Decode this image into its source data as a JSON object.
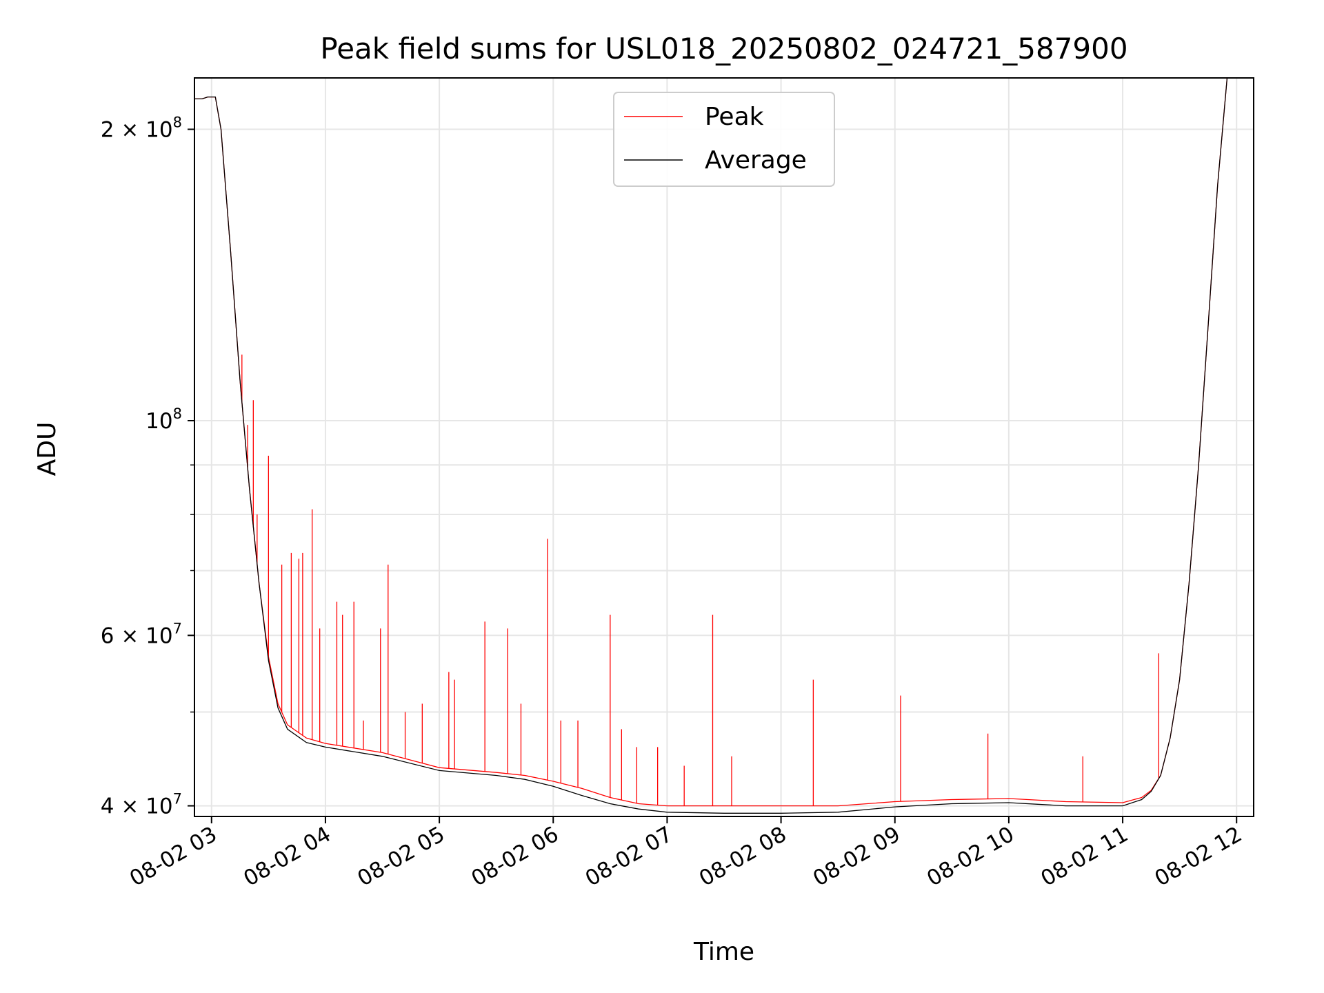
{
  "chart_data": {
    "type": "line",
    "title": "Peak field sums for USL018_20250802_024721_587900",
    "xlabel": "Time",
    "ylabel": "ADU",
    "x_scale": "time",
    "y_scale": "log",
    "xlim": [
      "2025-08-02 02:51",
      "2025-08-02 12:09"
    ],
    "ylim": [
      39000000,
      226000000
    ],
    "grid": true,
    "legend_position": "top-center",
    "x_ticks": [
      "08-02 03",
      "08-02 04",
      "08-02 05",
      "08-02 06",
      "08-02 07",
      "08-02 08",
      "08-02 09",
      "08-02 10",
      "08-02 11",
      "08-02 12"
    ],
    "x_tick_times": [
      "2025-08-02 03:00",
      "2025-08-02 04:00",
      "2025-08-02 05:00",
      "2025-08-02 06:00",
      "2025-08-02 07:00",
      "2025-08-02 08:00",
      "2025-08-02 09:00",
      "2025-08-02 10:00",
      "2025-08-02 11:00",
      "2025-08-02 12:00"
    ],
    "y_ticks": [
      {
        "value": 40000000,
        "label": "4 × 10",
        "exp": "7"
      },
      {
        "value": 60000000,
        "label": "6 × 10",
        "exp": "7"
      },
      {
        "value": 100000000,
        "label": "10",
        "exp": "8"
      },
      {
        "value": 200000000,
        "label": "2 × 10",
        "exp": "8"
      }
    ],
    "y_minor_ticks": [
      50000000,
      70000000,
      80000000,
      90000000,
      300000000
    ],
    "series": [
      {
        "name": "Peak",
        "color": "#ff0000",
        "x": [
          "2025-08-02 02:51",
          "2025-08-02 02:55",
          "2025-08-02 02:58",
          "2025-08-02 03:02",
          "2025-08-02 03:05",
          "2025-08-02 03:10",
          "2025-08-02 03:15",
          "2025-08-02 03:20",
          "2025-08-02 03:25",
          "2025-08-02 03:30",
          "2025-08-02 03:35",
          "2025-08-02 03:40",
          "2025-08-02 03:50",
          "2025-08-02 04:00",
          "2025-08-02 04:30",
          "2025-08-02 05:00",
          "2025-08-02 05:30",
          "2025-08-02 05:45",
          "2025-08-02 06:00",
          "2025-08-02 06:15",
          "2025-08-02 06:30",
          "2025-08-02 06:45",
          "2025-08-02 07:00",
          "2025-08-02 07:30",
          "2025-08-02 08:00",
          "2025-08-02 08:30",
          "2025-08-02 09:00",
          "2025-08-02 09:30",
          "2025-08-02 10:00",
          "2025-08-02 10:30",
          "2025-08-02 11:00",
          "2025-08-02 11:10",
          "2025-08-02 11:15",
          "2025-08-02 11:20",
          "2025-08-02 11:25",
          "2025-08-02 11:30",
          "2025-08-02 11:35",
          "2025-08-02 11:40",
          "2025-08-02 11:45",
          "2025-08-02 11:50",
          "2025-08-02 11:55",
          "2025-08-02 12:09"
        ],
        "values": [
          215000000,
          215000000,
          216000000,
          216000000,
          200000000,
          150000000,
          110000000,
          85000000,
          68000000,
          57000000,
          51000000,
          48500000,
          47000000,
          46400000,
          45400000,
          43800000,
          43300000,
          43000000,
          42400000,
          41700000,
          40800000,
          40200000,
          40000000,
          40000000,
          40000000,
          40000000,
          40400000,
          40600000,
          40700000,
          40400000,
          40300000,
          40800000,
          41500000,
          43000000,
          47000000,
          54000000,
          68000000,
          90000000,
          125000000,
          175000000,
          226000000,
          226000000
        ],
        "spikes": [
          {
            "x": "2025-08-02 03:16",
            "value": 117000000
          },
          {
            "x": "2025-08-02 03:19",
            "value": 99000000
          },
          {
            "x": "2025-08-02 03:22",
            "value": 105000000
          },
          {
            "x": "2025-08-02 03:24",
            "value": 80000000
          },
          {
            "x": "2025-08-02 03:30",
            "value": 92000000
          },
          {
            "x": "2025-08-02 03:37",
            "value": 71000000
          },
          {
            "x": "2025-08-02 03:42",
            "value": 73000000
          },
          {
            "x": "2025-08-02 03:46",
            "value": 72000000
          },
          {
            "x": "2025-08-02 03:48",
            "value": 73000000
          },
          {
            "x": "2025-08-02 03:53",
            "value": 81000000
          },
          {
            "x": "2025-08-02 03:57",
            "value": 61000000
          },
          {
            "x": "2025-08-02 04:06",
            "value": 65000000
          },
          {
            "x": "2025-08-02 04:09",
            "value": 63000000
          },
          {
            "x": "2025-08-02 04:15",
            "value": 65000000
          },
          {
            "x": "2025-08-02 04:20",
            "value": 49000000
          },
          {
            "x": "2025-08-02 04:29",
            "value": 61000000
          },
          {
            "x": "2025-08-02 04:33",
            "value": 71000000
          },
          {
            "x": "2025-08-02 04:42",
            "value": 50000000
          },
          {
            "x": "2025-08-02 04:51",
            "value": 51000000
          },
          {
            "x": "2025-08-02 05:05",
            "value": 55000000
          },
          {
            "x": "2025-08-02 05:08",
            "value": 54000000
          },
          {
            "x": "2025-08-02 05:24",
            "value": 62000000
          },
          {
            "x": "2025-08-02 05:36",
            "value": 61000000
          },
          {
            "x": "2025-08-02 05:43",
            "value": 51000000
          },
          {
            "x": "2025-08-02 05:57",
            "value": 75500000
          },
          {
            "x": "2025-08-02 06:04",
            "value": 49000000
          },
          {
            "x": "2025-08-02 06:13",
            "value": 49000000
          },
          {
            "x": "2025-08-02 06:30",
            "value": 63000000
          },
          {
            "x": "2025-08-02 06:36",
            "value": 48000000
          },
          {
            "x": "2025-08-02 06:44",
            "value": 46000000
          },
          {
            "x": "2025-08-02 06:55",
            "value": 46000000
          },
          {
            "x": "2025-08-02 07:09",
            "value": 44000000
          },
          {
            "x": "2025-08-02 07:24",
            "value": 63000000
          },
          {
            "x": "2025-08-02 07:34",
            "value": 45000000
          },
          {
            "x": "2025-08-02 08:17",
            "value": 54000000
          },
          {
            "x": "2025-08-02 09:03",
            "value": 52000000
          },
          {
            "x": "2025-08-02 09:49",
            "value": 47500000
          },
          {
            "x": "2025-08-02 10:39",
            "value": 45000000
          },
          {
            "x": "2025-08-02 11:19",
            "value": 57500000
          }
        ]
      },
      {
        "name": "Average",
        "color": "#000000",
        "x": [
          "2025-08-02 02:51",
          "2025-08-02 02:55",
          "2025-08-02 02:58",
          "2025-08-02 03:02",
          "2025-08-02 03:05",
          "2025-08-02 03:10",
          "2025-08-02 03:15",
          "2025-08-02 03:20",
          "2025-08-02 03:25",
          "2025-08-02 03:30",
          "2025-08-02 03:35",
          "2025-08-02 03:40",
          "2025-08-02 03:50",
          "2025-08-02 04:00",
          "2025-08-02 04:30",
          "2025-08-02 05:00",
          "2025-08-02 05:30",
          "2025-08-02 05:45",
          "2025-08-02 06:00",
          "2025-08-02 06:15",
          "2025-08-02 06:30",
          "2025-08-02 06:45",
          "2025-08-02 07:00",
          "2025-08-02 07:30",
          "2025-08-02 08:00",
          "2025-08-02 08:30",
          "2025-08-02 09:00",
          "2025-08-02 09:30",
          "2025-08-02 10:00",
          "2025-08-02 10:30",
          "2025-08-02 11:00",
          "2025-08-02 11:10",
          "2025-08-02 11:15",
          "2025-08-02 11:20",
          "2025-08-02 11:25",
          "2025-08-02 11:30",
          "2025-08-02 11:35",
          "2025-08-02 11:40",
          "2025-08-02 11:45",
          "2025-08-02 11:50",
          "2025-08-02 11:55",
          "2025-08-02 12:09"
        ],
        "values": [
          215000000,
          215000000,
          216000000,
          216000000,
          200000000,
          150000000,
          110000000,
          85000000,
          68000000,
          56500000,
          50500000,
          48000000,
          46500000,
          46000000,
          45000000,
          43500000,
          43000000,
          42600000,
          41900000,
          41000000,
          40200000,
          39700000,
          39400000,
          39300000,
          39300000,
          39400000,
          39900000,
          40200000,
          40300000,
          40000000,
          40000000,
          40600000,
          41400000,
          43000000,
          47000000,
          54000000,
          68000000,
          90000000,
          125000000,
          175000000,
          226000000,
          226000000
        ]
      }
    ]
  }
}
